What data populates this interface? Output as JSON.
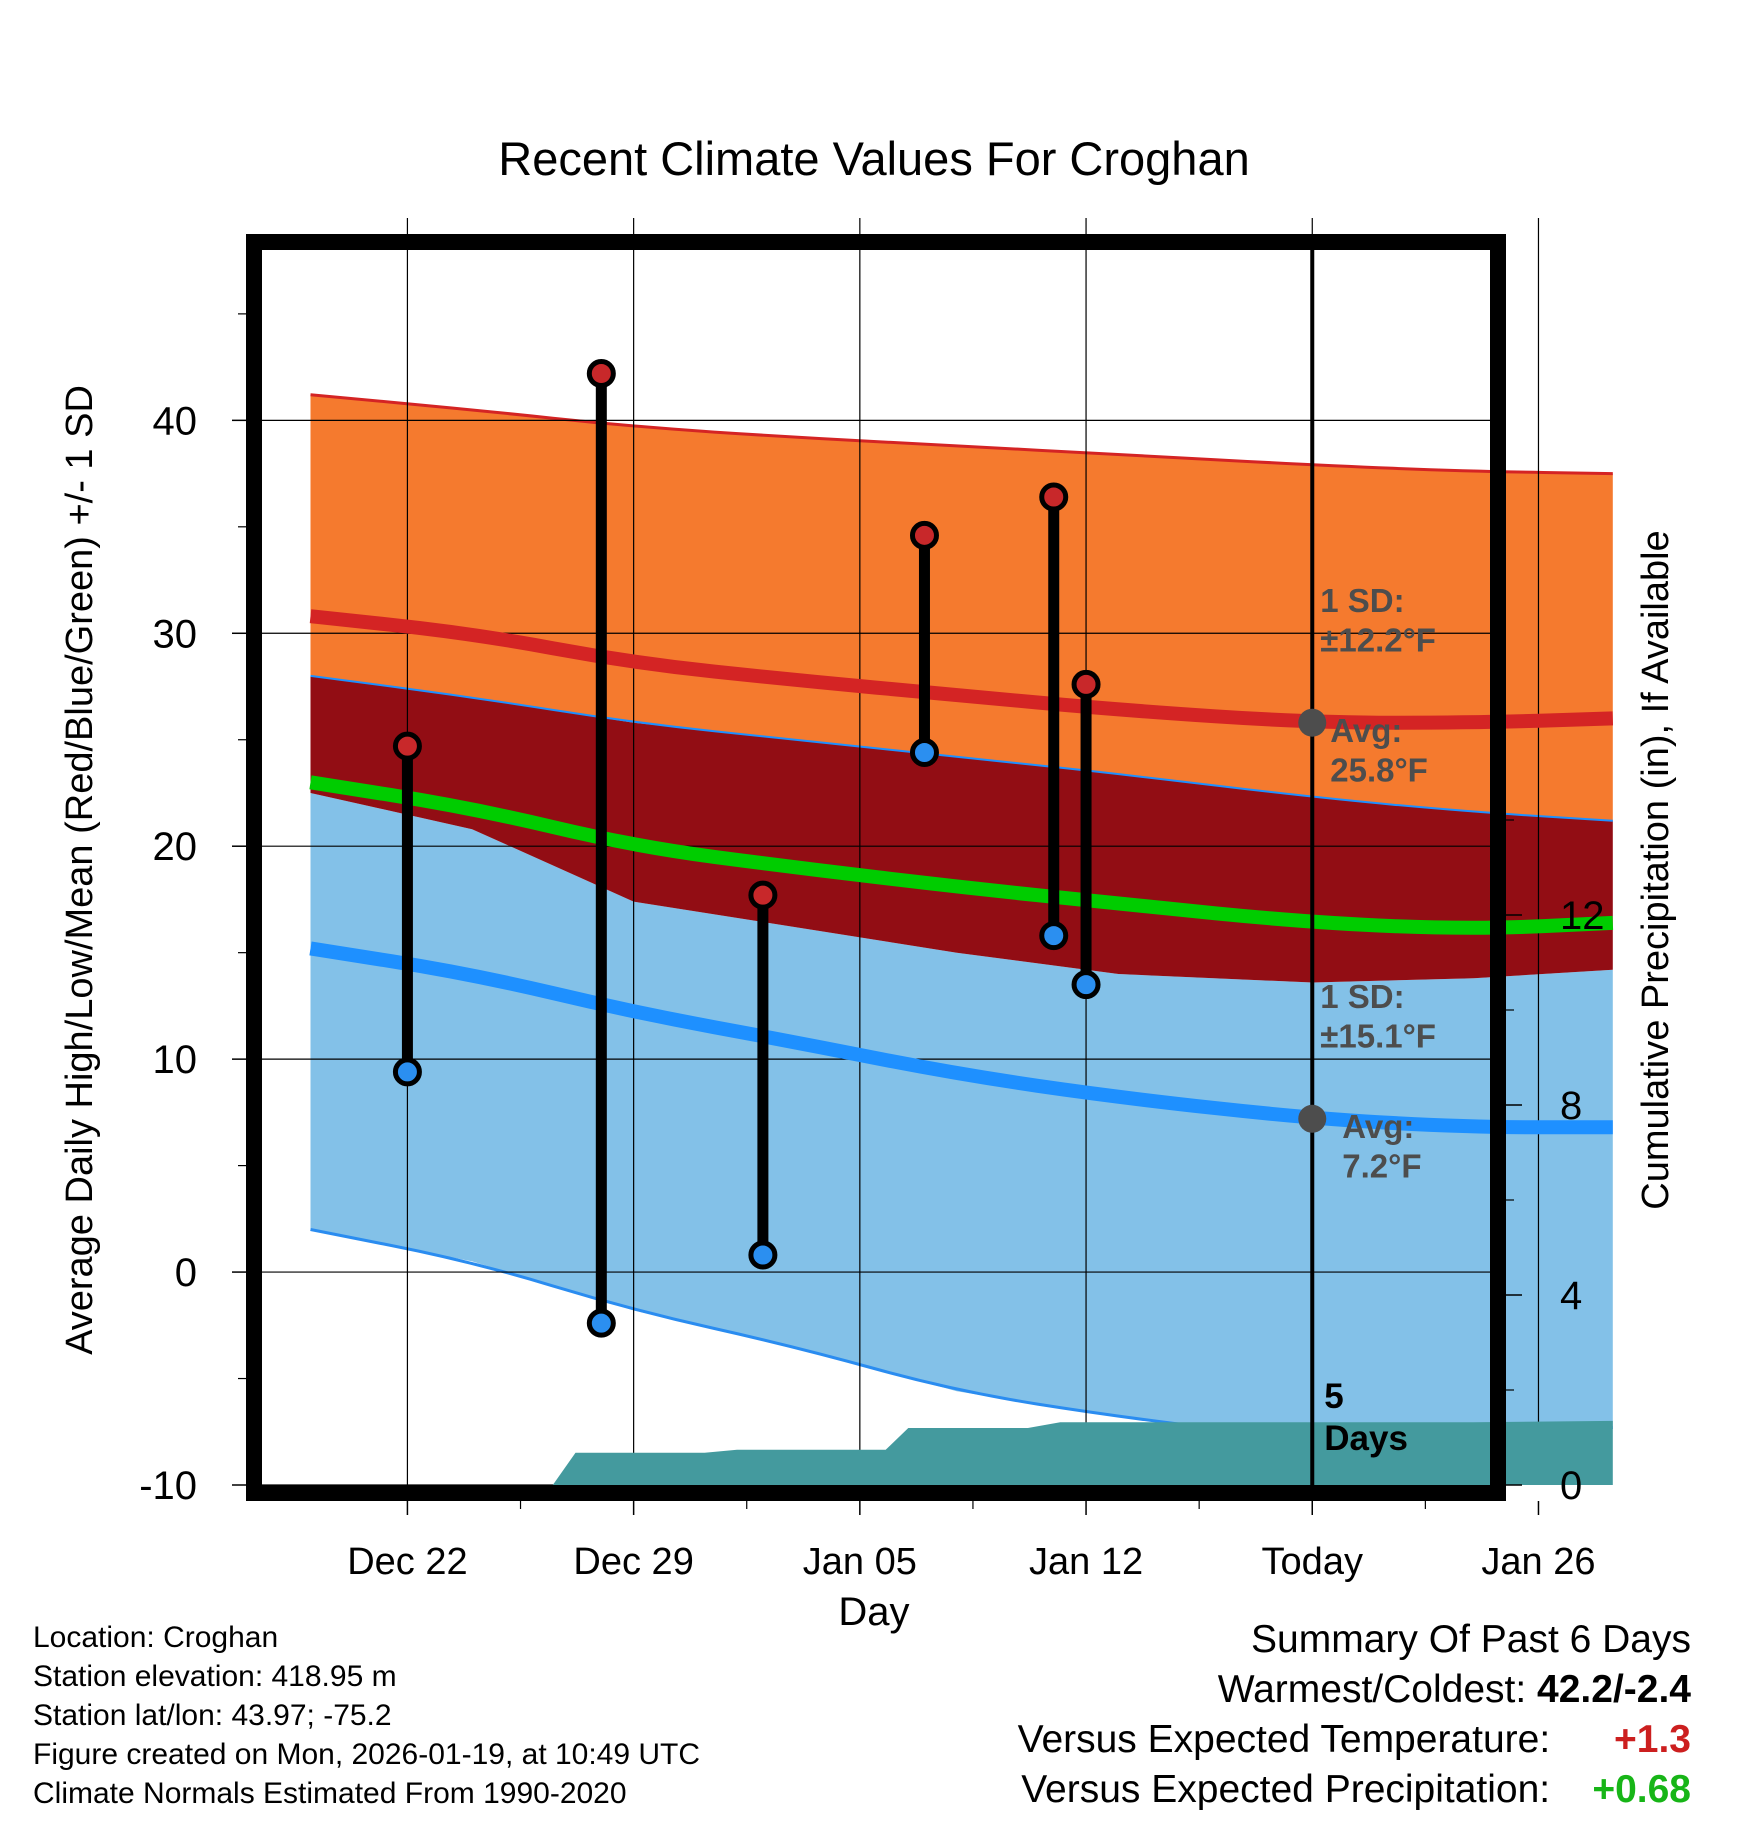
{
  "chart_data": {
    "type": "area",
    "title": "Recent Climate Values For Croghan",
    "xlabel": "Day",
    "ylabel": "Average Daily High/Low/Mean (Red/Blue/Green) +/- 1 SD",
    "y2label": "Cumulative Precipitation (in), If Available",
    "ylim": [
      -10,
      48
    ],
    "y2lim": [
      0,
      26
    ],
    "xlim": [
      -4.5,
      33.5
    ],
    "yticks": [
      -10,
      0,
      10,
      20,
      30,
      40
    ],
    "y2ticks": [
      0,
      4,
      8,
      12
    ],
    "x_tick_positions": [
      0,
      7,
      14,
      21,
      28,
      35
    ],
    "x_tick_labels": [
      "Dec 22",
      "Dec 29",
      "Jan 05",
      "Jan 12",
      "Today",
      "Jan 26"
    ],
    "today_x": 28,
    "normals": {
      "x": [
        -3,
        2,
        7,
        12,
        17,
        22,
        28,
        33,
        37.3
      ],
      "high_avg": [
        30.8,
        30.0,
        28.6,
        27.8,
        27.1,
        26.4,
        25.8,
        25.8,
        26.0
      ],
      "high_plus_sd": [
        41.2,
        40.5,
        39.7,
        39.2,
        38.8,
        38.4,
        37.9,
        37.6,
        37.5
      ],
      "high_minus_sd": [
        28.0,
        27.0,
        25.8,
        25.0,
        24.2,
        23.4,
        22.3,
        21.6,
        21.2
      ],
      "mean_avg": [
        23.0,
        21.8,
        20.0,
        19.0,
        18.1,
        17.3,
        16.4,
        16.1,
        16.4
      ],
      "low_avg": [
        15.2,
        14.0,
        12.2,
        10.8,
        9.3,
        8.2,
        7.2,
        6.8,
        6.8
      ],
      "low_plus_sd": [
        22.5,
        20.8,
        17.4,
        16.2,
        15.0,
        14.0,
        13.6,
        13.8,
        14.2
      ],
      "low_minus_sd": [
        2.0,
        0.5,
        -1.8,
        -3.5,
        -5.6,
        -6.8,
        -7.9,
        -7.8,
        -7.3
      ]
    },
    "observations": [
      {
        "x": 0,
        "high": 24.7,
        "low": 9.4
      },
      {
        "x": 6,
        "high": 42.2,
        "low": -2.4
      },
      {
        "x": 11,
        "high": 17.7,
        "low": 0.8
      },
      {
        "x": 16,
        "high": 34.6,
        "low": 24.4
      },
      {
        "x": 20,
        "high": 36.4,
        "low": 15.8
      },
      {
        "x": 21,
        "high": 27.6,
        "low": 13.5
      }
    ],
    "precipitation": {
      "x": [
        4.5,
        5.2,
        8.0,
        9.2,
        10.2,
        14.8,
        15.5,
        18.2,
        19.2,
        20.2,
        21.0,
        28.0,
        33.0,
        37.3
      ],
      "cumulative": [
        0,
        0.68,
        0.68,
        0.68,
        0.74,
        0.74,
        1.2,
        1.2,
        1.2,
        1.32,
        1.32,
        1.32,
        1.32,
        1.35
      ]
    },
    "annotations": {
      "high_sd": "1 SD:\n±12.2°F",
      "high_avg": "Avg:\n25.8°F",
      "low_sd": "1 SD:\n±15.1°F",
      "low_avg": "Avg:\n7.2°F",
      "precip_days": "5\nDays"
    },
    "colors": {
      "high_band": "#f57a2e",
      "high_line": "#d42424",
      "overlap_band": "#920d14",
      "low_band": "#83c1e8",
      "low_line": "#1e90ff",
      "low_edge": "#2a8cf0",
      "mean_line": "#00cc00",
      "precip": "#449a9e",
      "obs_high_dot": "#c8282a",
      "obs_low_dot": "#2b8ff0",
      "today_dot": "#4d4d4d",
      "annot_text": "#4d4d4d"
    }
  },
  "info": {
    "location": "Location: Croghan",
    "elevation": "Station elevation: 418.95 m",
    "latlon": "Station lat/lon: 43.97; -75.2",
    "created": "Figure created on Mon, 2026-01-19, at 10:49 UTC",
    "normals": "Climate Normals Estimated From 1990-2020"
  },
  "summary": {
    "title": "Summary Of Past 6 Days",
    "warmest_label": "Warmest/Coldest:",
    "warmest_value": "42.2/-2.4",
    "temp_label": "Versus Expected Temperature:",
    "temp_value": "+1.3",
    "precip_label": "Versus Expected Precipitation:",
    "precip_value": "+0.68"
  }
}
